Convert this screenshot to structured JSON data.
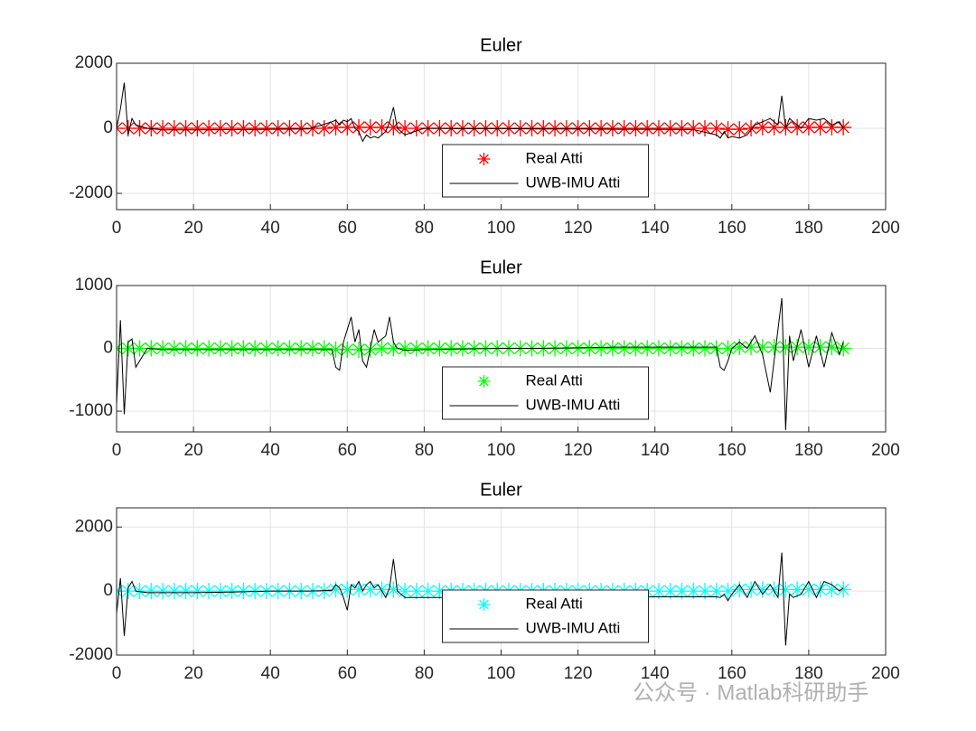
{
  "chart_data": [
    {
      "type": "line",
      "title": "Euler",
      "xlim": [
        0,
        200
      ],
      "xticks": [
        0,
        20,
        40,
        60,
        80,
        100,
        120,
        140,
        160,
        180,
        200
      ],
      "ylim": [
        -2500,
        2000
      ],
      "yticks": [
        -2000,
        0,
        2000
      ],
      "grid": true,
      "legend": "south",
      "series": [
        {
          "name": "Real Atti",
          "color": "#ff0000",
          "marker": "asterisk",
          "x": [
            0,
            3,
            6,
            9,
            12,
            15,
            18,
            21,
            24,
            27,
            30,
            33,
            36,
            39,
            42,
            45,
            48,
            51,
            54,
            57,
            60,
            63,
            66,
            69,
            72,
            75,
            78,
            81,
            84,
            87,
            90,
            93,
            96,
            99,
            102,
            105,
            108,
            111,
            114,
            117,
            120,
            123,
            126,
            129,
            132,
            135,
            138,
            141,
            144,
            147,
            150,
            153,
            156,
            159,
            162,
            165,
            168,
            171,
            174,
            177,
            180,
            183,
            186,
            189
          ],
          "values": [
            0,
            0,
            0,
            0,
            0,
            0,
            0,
            0,
            0,
            0,
            0,
            0,
            0,
            0,
            0,
            0,
            0,
            0,
            0,
            30,
            30,
            30,
            30,
            30,
            30,
            0,
            0,
            0,
            0,
            0,
            0,
            0,
            0,
            0,
            0,
            0,
            0,
            0,
            0,
            0,
            0,
            0,
            0,
            0,
            0,
            0,
            0,
            0,
            0,
            0,
            0,
            0,
            0,
            -30,
            -30,
            0,
            30,
            30,
            30,
            30,
            30,
            30,
            30,
            30
          ]
        },
        {
          "name": "UWB-IMU  Atti",
          "color": "#000000",
          "x": [
            0,
            1,
            2,
            3,
            4,
            5,
            8,
            12,
            20,
            30,
            40,
            50,
            56,
            57,
            58,
            59,
            60,
            61,
            62,
            63,
            64,
            65,
            66,
            67,
            68,
            70,
            71,
            72,
            73,
            75,
            80,
            90,
            100,
            110,
            120,
            130,
            140,
            150,
            156,
            157,
            158,
            159,
            160,
            162,
            164,
            166,
            168,
            170,
            172,
            173,
            174,
            175,
            176,
            178,
            180,
            182,
            184,
            186,
            188,
            189
          ],
          "values": [
            0,
            600,
            1400,
            -200,
            300,
            100,
            0,
            -50,
            -50,
            -40,
            -30,
            -20,
            200,
            250,
            100,
            250,
            200,
            300,
            0,
            -100,
            -400,
            -200,
            -300,
            -250,
            -300,
            -100,
            200,
            650,
            0,
            -200,
            0,
            -10,
            -10,
            -20,
            -20,
            -30,
            -30,
            -40,
            -200,
            -300,
            -100,
            -300,
            -250,
            -300,
            -200,
            100,
            200,
            300,
            100,
            1000,
            0,
            300,
            200,
            0,
            300,
            250,
            300,
            100,
            200,
            0
          ]
        }
      ]
    },
    {
      "type": "line",
      "title": "Euler",
      "xlim": [
        0,
        200
      ],
      "xticks": [
        0,
        20,
        40,
        60,
        80,
        100,
        120,
        140,
        160,
        180,
        200
      ],
      "ylim": [
        -1330,
        1000
      ],
      "yticks": [
        -1000,
        0,
        1000
      ],
      "grid": true,
      "legend": "south",
      "series": [
        {
          "name": "Real Atti",
          "color": "#00ff00",
          "marker": "asterisk",
          "x": [
            0,
            3,
            6,
            9,
            12,
            15,
            18,
            21,
            24,
            27,
            30,
            33,
            36,
            39,
            42,
            45,
            48,
            51,
            54,
            57,
            60,
            63,
            66,
            69,
            72,
            75,
            78,
            81,
            84,
            87,
            90,
            93,
            96,
            99,
            102,
            105,
            108,
            111,
            114,
            117,
            120,
            123,
            126,
            129,
            132,
            135,
            138,
            141,
            144,
            147,
            150,
            153,
            156,
            159,
            162,
            165,
            168,
            171,
            174,
            177,
            180,
            183,
            186,
            189
          ],
          "values": [
            0,
            0,
            0,
            0,
            0,
            0,
            0,
            0,
            0,
            0,
            0,
            0,
            0,
            0,
            0,
            0,
            0,
            0,
            0,
            -20,
            -20,
            -20,
            -20,
            0,
            0,
            0,
            0,
            0,
            0,
            0,
            0,
            0,
            0,
            0,
            0,
            0,
            0,
            0,
            0,
            0,
            0,
            0,
            0,
            0,
            0,
            0,
            0,
            0,
            0,
            0,
            0,
            0,
            0,
            0,
            20,
            20,
            20,
            20,
            20,
            20,
            20,
            20,
            20,
            0
          ]
        },
        {
          "name": "UWB-IMU  Atti",
          "color": "#000000",
          "x": [
            0,
            1,
            2,
            3,
            4,
            5,
            8,
            12,
            20,
            30,
            40,
            50,
            56,
            57,
            58,
            59,
            60,
            61,
            62,
            63,
            64,
            65,
            66,
            67,
            68,
            70,
            71,
            72,
            73,
            75,
            80,
            90,
            100,
            110,
            120,
            130,
            140,
            150,
            156,
            157,
            158,
            159,
            160,
            162,
            164,
            166,
            168,
            170,
            172,
            173,
            174,
            175,
            176,
            178,
            180,
            182,
            184,
            186,
            188,
            189
          ],
          "values": [
            -900,
            450,
            -1050,
            100,
            150,
            -300,
            0,
            -20,
            -20,
            -20,
            -20,
            -20,
            -20,
            -300,
            -350,
            100,
            300,
            500,
            100,
            300,
            -200,
            -300,
            0,
            300,
            100,
            200,
            500,
            100,
            0,
            -30,
            -20,
            -10,
            0,
            0,
            10,
            20,
            20,
            20,
            20,
            -300,
            -350,
            -200,
            0,
            100,
            0,
            200,
            -100,
            -700,
            300,
            800,
            -1300,
            200,
            -200,
            300,
            -300,
            200,
            -300,
            250,
            -100,
            100
          ]
        }
      ]
    },
    {
      "type": "line",
      "title": "Euler",
      "xlim": [
        0,
        200
      ],
      "xticks": [
        0,
        20,
        40,
        60,
        80,
        100,
        120,
        140,
        160,
        180,
        200
      ],
      "ylim": [
        -2000,
        2600
      ],
      "yticks": [
        -2000,
        0,
        2000
      ],
      "grid": true,
      "legend": "south",
      "series": [
        {
          "name": "Real Atti",
          "color": "#00ffff",
          "marker": "asterisk",
          "x": [
            0,
            3,
            6,
            9,
            12,
            15,
            18,
            21,
            24,
            27,
            30,
            33,
            36,
            39,
            42,
            45,
            48,
            51,
            54,
            57,
            60,
            63,
            66,
            69,
            72,
            75,
            78,
            81,
            84,
            87,
            90,
            93,
            96,
            99,
            102,
            105,
            108,
            111,
            114,
            117,
            120,
            123,
            126,
            129,
            132,
            135,
            138,
            141,
            144,
            147,
            150,
            153,
            156,
            159,
            162,
            165,
            168,
            171,
            174,
            177,
            180,
            183,
            186,
            189
          ],
          "values": [
            0,
            0,
            0,
            0,
            0,
            0,
            0,
            0,
            0,
            0,
            0,
            0,
            0,
            0,
            0,
            0,
            0,
            0,
            0,
            50,
            50,
            50,
            50,
            50,
            50,
            0,
            0,
            0,
            0,
            0,
            0,
            0,
            0,
            0,
            0,
            0,
            0,
            0,
            0,
            0,
            0,
            0,
            0,
            0,
            0,
            0,
            0,
            0,
            0,
            0,
            0,
            0,
            0,
            0,
            50,
            50,
            50,
            50,
            50,
            50,
            50,
            50,
            50,
            50
          ]
        },
        {
          "name": "UWB-IMU  Atti",
          "color": "#000000",
          "x": [
            0,
            1,
            2,
            3,
            4,
            5,
            8,
            12,
            20,
            30,
            40,
            50,
            56,
            57,
            58,
            59,
            60,
            61,
            62,
            63,
            64,
            65,
            66,
            67,
            68,
            70,
            71,
            72,
            73,
            75,
            80,
            90,
            100,
            110,
            120,
            130,
            140,
            150,
            156,
            157,
            158,
            159,
            160,
            162,
            164,
            166,
            168,
            170,
            172,
            173,
            174,
            175,
            176,
            178,
            180,
            182,
            184,
            186,
            188,
            189
          ],
          "values": [
            -700,
            400,
            -1400,
            100,
            300,
            0,
            -50,
            -50,
            -50,
            -30,
            0,
            0,
            20,
            200,
            100,
            -200,
            -600,
            200,
            100,
            300,
            0,
            200,
            300,
            100,
            200,
            -200,
            100,
            1000,
            0,
            -200,
            -200,
            -200,
            -200,
            -200,
            -200,
            -200,
            -180,
            -180,
            -180,
            -200,
            -100,
            -300,
            -100,
            200,
            -200,
            300,
            -100,
            200,
            -200,
            1200,
            -1700,
            -100,
            -200,
            -100,
            300,
            -200,
            300,
            200,
            0,
            100
          ]
        }
      ]
    }
  ],
  "watermark": "公众号 · Matlab科研助手"
}
